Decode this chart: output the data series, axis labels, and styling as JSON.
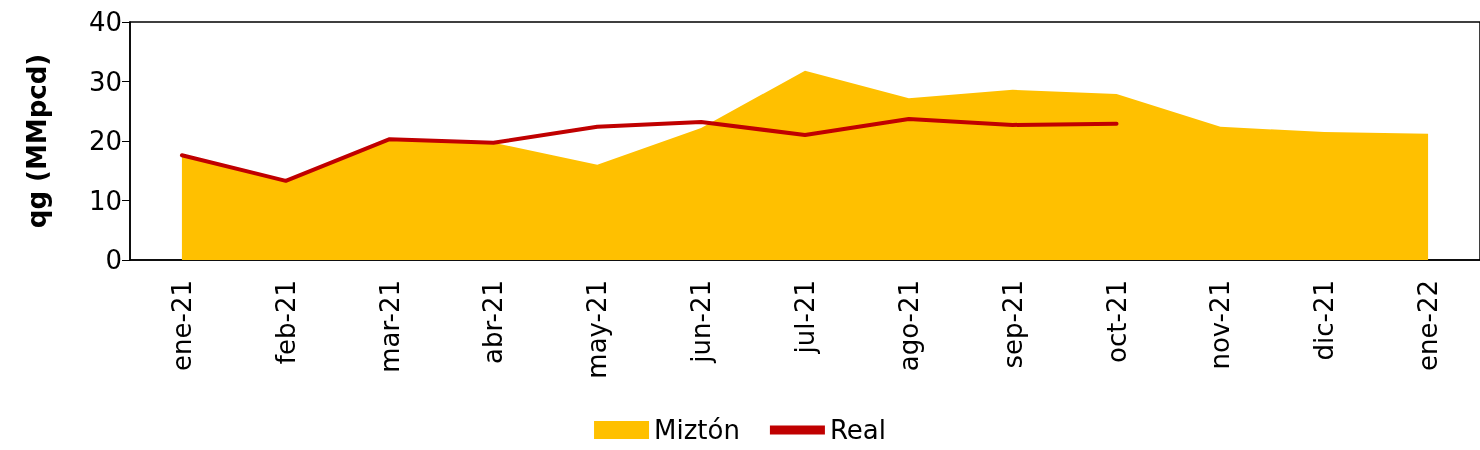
{
  "chart_data": {
    "type": "area",
    "ylabel": "qg (MMpcd)",
    "categories": [
      "ene-21",
      "feb-21",
      "mar-21",
      "abr-21",
      "may-21",
      "jun-21",
      "jul-21",
      "ago-21",
      "sep-21",
      "oct-21",
      "nov-21",
      "dic-21",
      "ene-22"
    ],
    "series": [
      {
        "name": "Miztón",
        "color": "#ffc000",
        "values": [
          17.6,
          13.3,
          20.2,
          19.7,
          16.0,
          22.2,
          31.8,
          27.2,
          28.6,
          27.9,
          22.4,
          21.5,
          21.2
        ]
      },
      {
        "name": "Real",
        "type": "line",
        "color": "#c00000",
        "values": [
          17.6,
          13.3,
          20.3,
          19.7,
          22.4,
          23.2,
          21.0,
          23.7,
          22.7,
          22.9,
          null,
          null,
          null
        ]
      }
    ],
    "ylim": [
      0,
      40
    ],
    "yticks": [
      0,
      10,
      20,
      30,
      40
    ],
    "grid": false,
    "legend": "bottom",
    "marker": "none",
    "line_style": "solid"
  }
}
